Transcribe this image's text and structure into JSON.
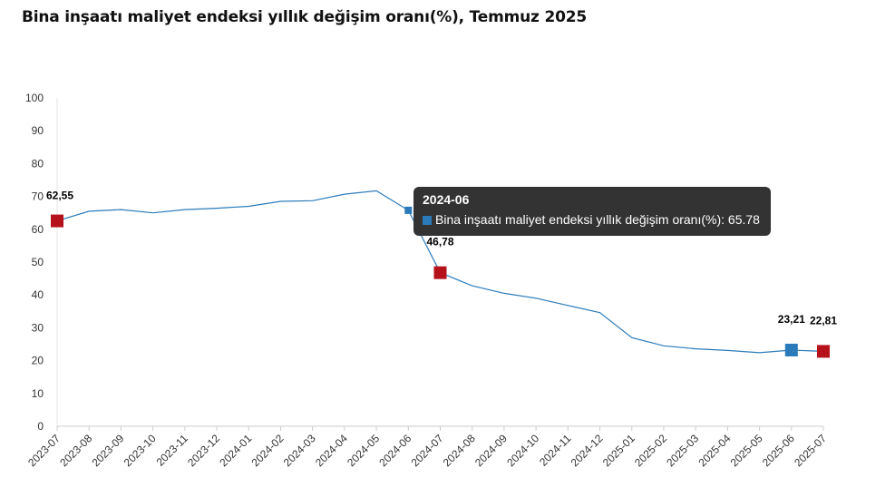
{
  "chart_data": {
    "type": "line",
    "title": "Bina inşaatı maliyet endeksi yıllık değişim oranı(%), Temmuz 2025",
    "xlabel": "",
    "ylabel": "",
    "ylim": [
      0,
      100
    ],
    "yticks": [
      0,
      10,
      20,
      30,
      40,
      50,
      60,
      70,
      80,
      90,
      100
    ],
    "grid": false,
    "legend": "none",
    "categories": [
      "2023-07",
      "2023-08",
      "2023-09",
      "2023-10",
      "2023-11",
      "2023-12",
      "2024-01",
      "2024-02",
      "2024-03",
      "2024-04",
      "2024-05",
      "2024-06",
      "2024-07",
      "2024-08",
      "2024-09",
      "2024-10",
      "2024-11",
      "2024-12",
      "2025-01",
      "2025-02",
      "2025-03",
      "2025-04",
      "2025-05",
      "2025-06",
      "2025-07"
    ],
    "series": [
      {
        "name": "Bina inşaatı maliyet endeksi yıllık değişim oranı(%)",
        "color": "#2b7bba",
        "values": [
          62.55,
          65.5,
          66.0,
          65.0,
          66.0,
          66.4,
          67.0,
          68.5,
          68.7,
          70.7,
          71.7,
          65.78,
          46.78,
          42.8,
          40.5,
          39.0,
          36.8,
          34.6,
          27.0,
          24.5,
          23.6,
          23.1,
          22.4,
          23.21,
          22.81
        ]
      }
    ],
    "data_labels": [
      {
        "index": 0,
        "text": "62,55"
      },
      {
        "index": 12,
        "text": "46,78"
      },
      {
        "index": 23,
        "text": "23,21"
      },
      {
        "index": 24,
        "text": "22,81"
      }
    ],
    "highlight_markers": [
      {
        "index": 0,
        "color": "#b5121b"
      },
      {
        "index": 12,
        "color": "#b5121b"
      },
      {
        "index": 23,
        "color": "#2b7bba"
      },
      {
        "index": 24,
        "color": "#b5121b"
      }
    ],
    "hover_marker_index": 11,
    "tooltip": {
      "title": "2024-06",
      "text": "Bina inşaatı maliyet endeksi yıllık değişim oranı(%): 65.78"
    }
  }
}
